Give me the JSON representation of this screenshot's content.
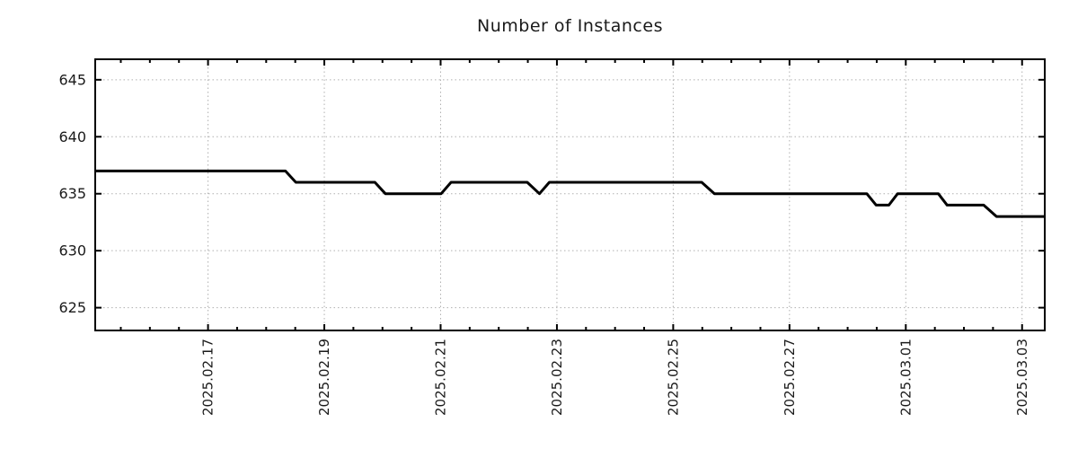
{
  "chart_data": {
    "type": "line",
    "title": "Number of Instances",
    "x_epoch": "2025-02-15 00:00",
    "x_unit": "days since 2025-02-15 00:00",
    "xlim": [
      0.06,
      16.39
    ],
    "ylim": [
      623.0,
      646.8
    ],
    "yticks": [
      625,
      630,
      635,
      640,
      645
    ],
    "xticks": [
      {
        "day": 2,
        "label": "2025.02.17"
      },
      {
        "day": 4,
        "label": "2025.02.19"
      },
      {
        "day": 6,
        "label": "2025.02.21"
      },
      {
        "day": 8,
        "label": "2025.02.23"
      },
      {
        "day": 10,
        "label": "2025.02.25"
      },
      {
        "day": 12,
        "label": "2025.02.27"
      },
      {
        "day": 14,
        "label": "2025.03.01"
      },
      {
        "day": 16,
        "label": "2025.03.03"
      }
    ],
    "minor_xtick_interval_days": 0.5,
    "grid": {
      "on": true,
      "style": "dotted",
      "color": "#b0b0b0"
    },
    "legend": "none",
    "series": [
      {
        "name": "instances",
        "color": "#000000",
        "line_width": 3,
        "points": [
          [
            0.06,
            637
          ],
          [
            3.33,
            637
          ],
          [
            3.51,
            636
          ],
          [
            4.87,
            636
          ],
          [
            5.05,
            635
          ],
          [
            6.01,
            635
          ],
          [
            6.18,
            636
          ],
          [
            7.49,
            636
          ],
          [
            7.7,
            635
          ],
          [
            7.87,
            636
          ],
          [
            10.49,
            636
          ],
          [
            10.71,
            635
          ],
          [
            13.33,
            635
          ],
          [
            13.49,
            634
          ],
          [
            13.71,
            634
          ],
          [
            13.86,
            635
          ],
          [
            14.56,
            635
          ],
          [
            14.71,
            634
          ],
          [
            15.34,
            634
          ],
          [
            15.56,
            633
          ],
          [
            16.39,
            633
          ]
        ]
      }
    ]
  },
  "colors": {
    "background": "#ffffff",
    "axis": "#000000",
    "text": "#1a1a1a",
    "grid": "#b0b0b0"
  }
}
